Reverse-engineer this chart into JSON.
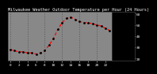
{
  "title": "Milwaukee Weather Outdoor Temperature per Hour (24 Hours)",
  "hours": [
    0,
    1,
    2,
    3,
    4,
    5,
    6,
    7,
    8,
    9,
    10,
    11,
    12,
    13,
    14,
    15,
    16,
    17,
    18,
    19,
    20,
    21,
    22,
    23
  ],
  "temps": [
    28,
    27,
    26,
    26,
    25,
    25,
    24,
    25,
    27,
    32,
    38,
    46,
    52,
    56,
    57,
    55,
    53,
    52,
    52,
    51,
    50,
    49,
    47,
    45
  ],
  "line_color": "#ff0000",
  "marker_color": "#000000",
  "background_color": "#888888",
  "plot_bg_color": "#888888",
  "grid_color": "#555555",
  "title_color": "#ffffff",
  "tick_color": "#ffffff",
  "ylim": [
    18,
    62
  ],
  "xlim": [
    -0.5,
    23.5
  ],
  "title_fontsize": 3.8,
  "tick_fontsize": 3.2,
  "right_panel_color": "#000000",
  "right_panel_text_color": "#ffffff",
  "ytick_labels": [
    "20",
    "30",
    "40",
    "50",
    "60"
  ],
  "ytick_values": [
    20,
    30,
    40,
    50,
    60
  ],
  "grid_hours": [
    0,
    4,
    8,
    12,
    16,
    20
  ]
}
